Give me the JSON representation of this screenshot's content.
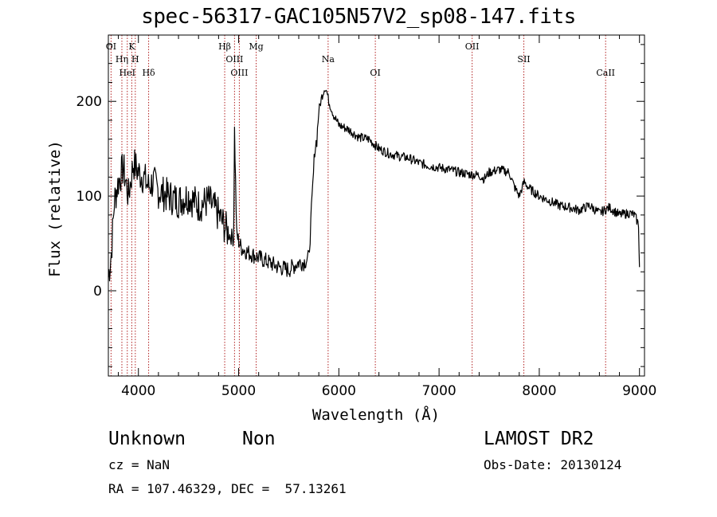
{
  "title": "spec-56317-GAC105N57V2_sp08-147.fits",
  "info": {
    "class": "Unknown",
    "subclass": "Non",
    "survey": "LAMOST DR2",
    "cz": "cz = NaN",
    "obs_date": "Obs-Date: 20130124",
    "coords": "RA = 107.46329, DEC =  57.13261"
  },
  "colors": {
    "spectrum": "#000000",
    "line_marker": "#b22222",
    "axis": "#000000"
  },
  "chart_data": {
    "type": "line",
    "title": "spec-56317-GAC105N57V2_sp08-147.fits",
    "xlabel": "Wavelength (Å)",
    "ylabel": "Flux (relative)",
    "xlim": [
      3700,
      9050
    ],
    "ylim": [
      -90,
      270
    ],
    "xticks": [
      4000,
      5000,
      6000,
      7000,
      8000,
      9000
    ],
    "yticks": [
      0,
      100,
      200
    ],
    "grid": false,
    "series": [
      {
        "x": [
          3700,
          3730,
          3760,
          3800,
          3850,
          3900,
          3950,
          4000,
          4050,
          4100,
          4150,
          4200,
          4300,
          4400,
          4500,
          4600,
          4700,
          4800,
          4850,
          4900,
          4950,
          4959,
          4980,
          5007,
          5030,
          5100,
          5200,
          5300,
          5400,
          5500,
          5600,
          5650,
          5700,
          5720,
          5740,
          5760,
          5780,
          5800,
          5830,
          5860,
          5880,
          5900,
          5950,
          6000,
          6100,
          6200,
          6300,
          6400,
          6500,
          6600,
          6700,
          6800,
          6900,
          7000,
          7100,
          7200,
          7300,
          7400,
          7450,
          7500,
          7600,
          7700,
          7750,
          7800,
          7850,
          7900,
          8000,
          8100,
          8200,
          8300,
          8400,
          8500,
          8600,
          8700,
          8800,
          8900,
          8950,
          8990,
          9000
        ],
        "y": [
          15,
          40,
          95,
          115,
          130,
          100,
          135,
          125,
          120,
          110,
          115,
          105,
          100,
          95,
          100,
          90,
          95,
          80,
          70,
          60,
          55,
          170,
          60,
          50,
          45,
          40,
          35,
          30,
          25,
          22,
          30,
          30,
          35,
          70,
          110,
          150,
          160,
          190,
          205,
          215,
          210,
          200,
          185,
          175,
          170,
          162,
          160,
          150,
          145,
          142,
          140,
          135,
          132,
          130,
          128,
          125,
          123,
          122,
          118,
          125,
          128,
          125,
          110,
          100,
          115,
          108,
          100,
          95,
          90,
          88,
          85,
          90,
          82,
          88,
          80,
          82,
          80,
          70,
          25
        ]
      }
    ],
    "lines": [
      {
        "label": "OI",
        "wavelength": 3727
      },
      {
        "label": "Hη",
        "wavelength": 3835
      },
      {
        "label": "HeI",
        "wavelength": 3889
      },
      {
        "label": "K",
        "wavelength": 3934
      },
      {
        "label": "H",
        "wavelength": 3969
      },
      {
        "label": "Hδ",
        "wavelength": 4102
      },
      {
        "label": "Hβ",
        "wavelength": 4861
      },
      {
        "label": "OIII",
        "wavelength": 4959
      },
      {
        "label": "OIII",
        "wavelength": 5007
      },
      {
        "label": "Mg",
        "wavelength": 5175
      },
      {
        "label": "Na",
        "wavelength": 5893
      },
      {
        "label": "OI",
        "wavelength": 6364
      },
      {
        "label": "OII",
        "wavelength": 7330
      },
      {
        "label": "SII",
        "wavelength": 7846
      },
      {
        "label": "CaII",
        "wavelength": 8662
      }
    ]
  }
}
